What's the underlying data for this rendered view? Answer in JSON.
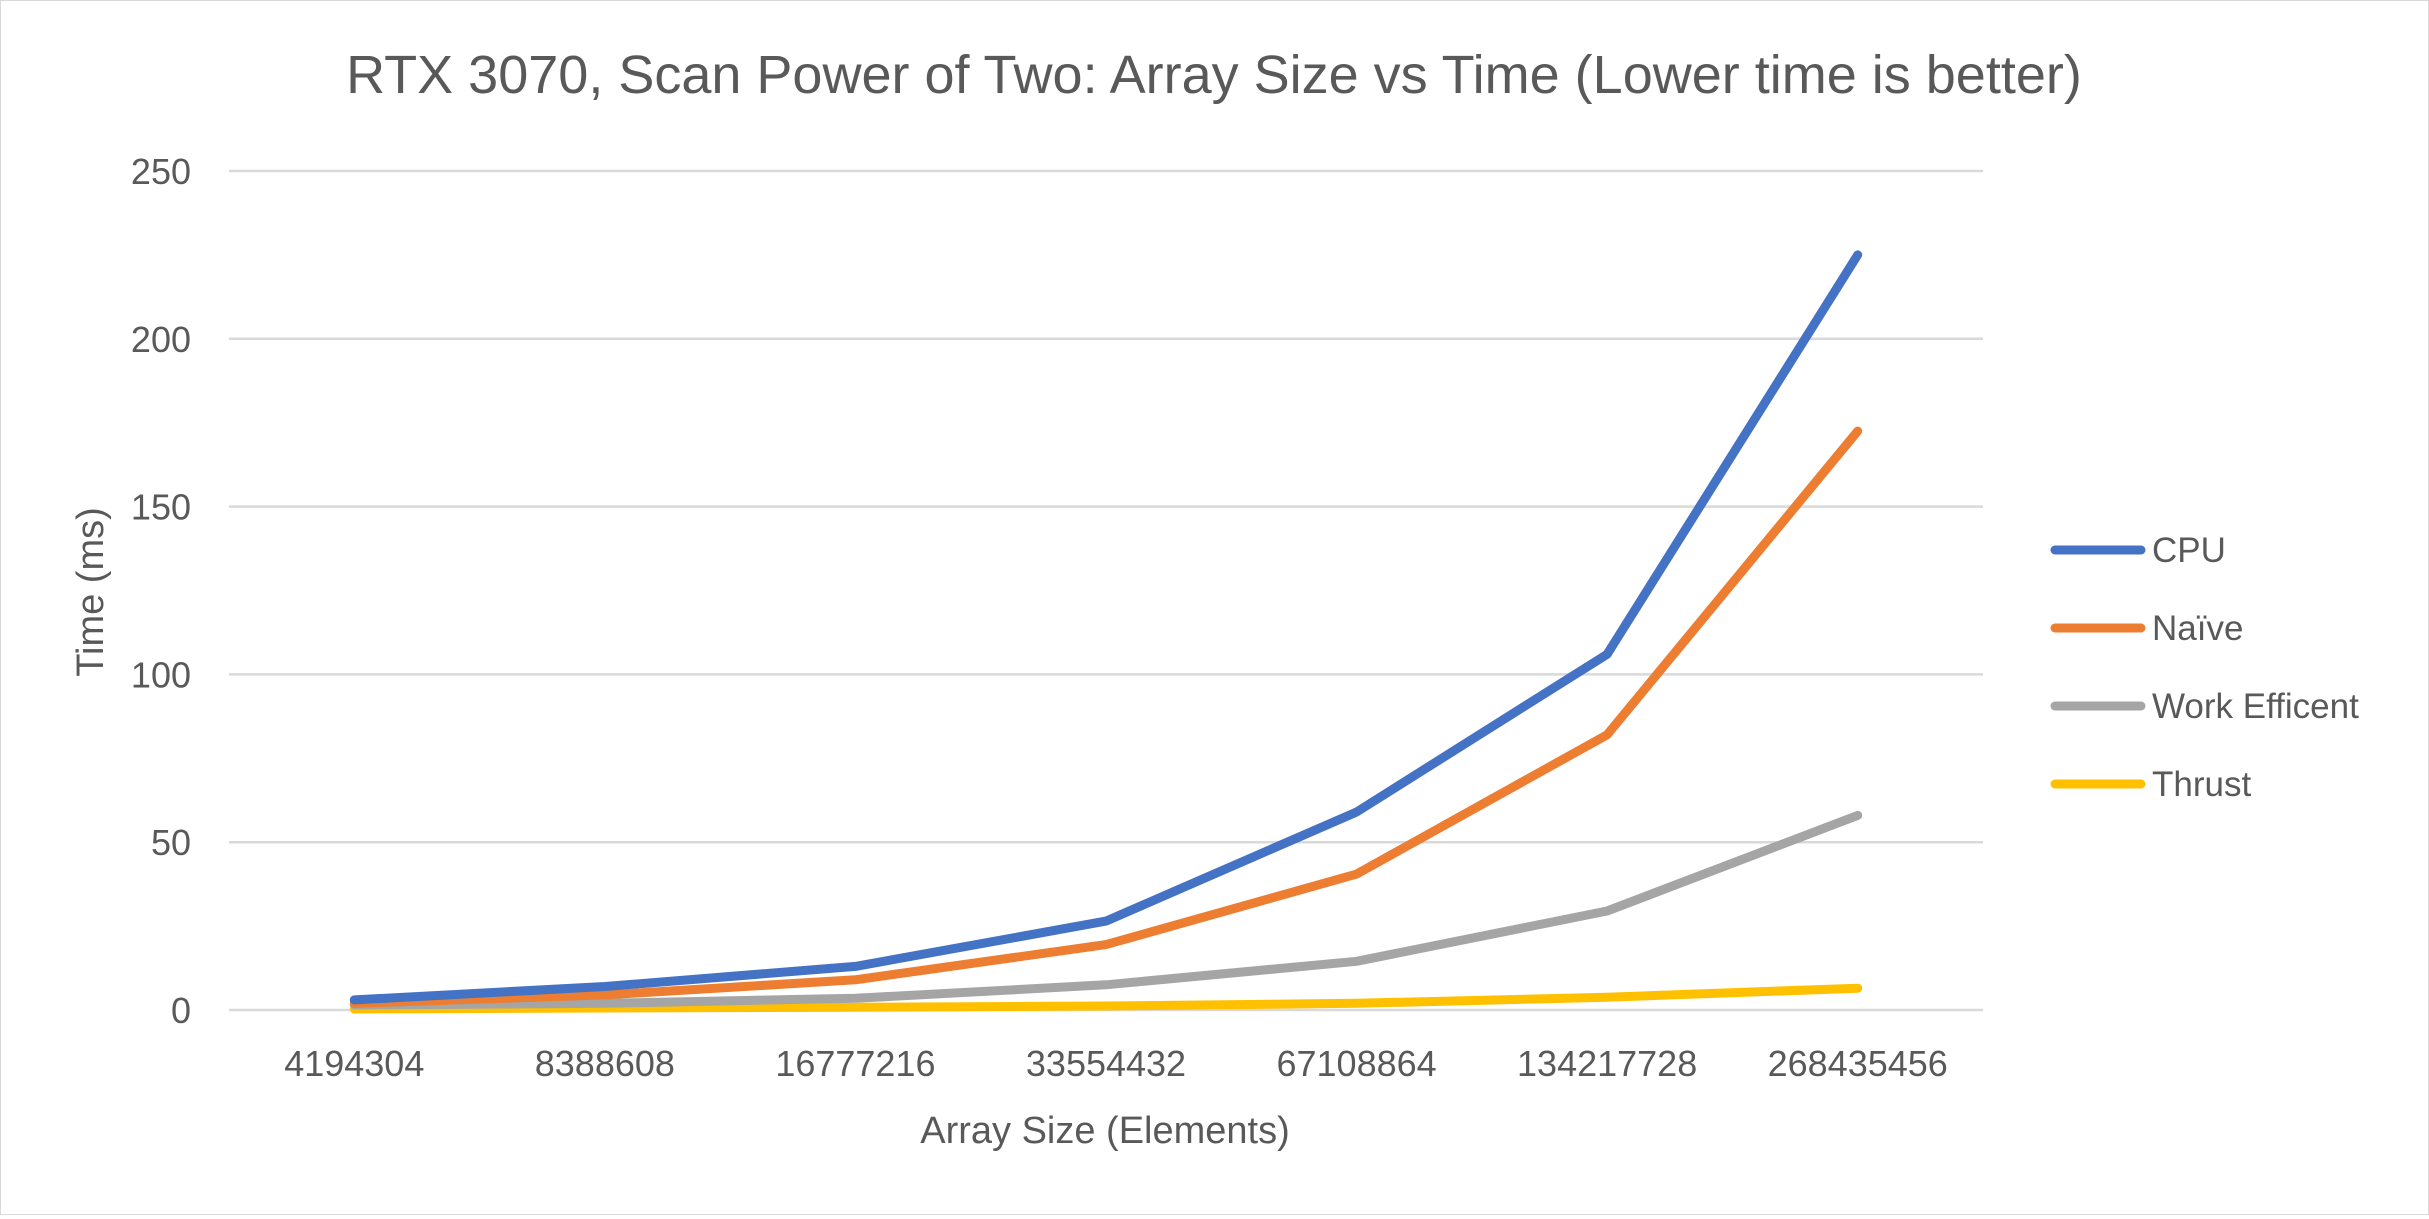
{
  "chart_data": {
    "type": "line",
    "title": "RTX 3070, Scan Power of Two: Array Size vs Time (Lower time is better)",
    "xlabel": "Array Size (Elements)",
    "ylabel": "Time (ms)",
    "categories": [
      "4194304",
      "8388608",
      "16777216",
      "33554432",
      "67108864",
      "134217728",
      "268435456"
    ],
    "ylim": [
      0,
      250
    ],
    "yticks": [
      "0",
      "50",
      "100",
      "150",
      "200",
      "250"
    ],
    "grid": "horizontal",
    "legend_position": "right",
    "series": [
      {
        "name": "CPU",
        "color": "#4472C4",
        "values": [
          3,
          7,
          13,
          26.5,
          59,
          106,
          225
        ]
      },
      {
        "name": "Naïve",
        "color": "#ED7D31",
        "values": [
          2,
          4.5,
          9,
          19.5,
          40.5,
          82,
          172.5
        ]
      },
      {
        "name": "Work Efficent",
        "color": "#A5A5A5",
        "values": [
          1.5,
          2,
          3.5,
          7.5,
          14.5,
          29.5,
          58
        ]
      },
      {
        "name": "Thrust",
        "color": "#FFC000",
        "values": [
          0.3,
          0.6,
          0.8,
          1.2,
          2,
          3.8,
          6.5
        ]
      }
    ]
  }
}
